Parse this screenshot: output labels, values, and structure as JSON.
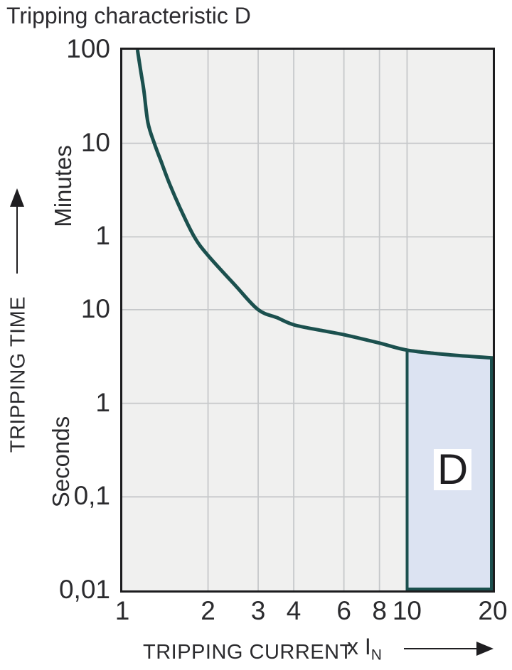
{
  "title": "Tripping characteristic D",
  "y_axis": {
    "title": "TRIPPING TIME",
    "unit_minutes": "Minutes",
    "unit_seconds": "Seconds"
  },
  "x_axis": {
    "title": "TRIPPING CURRENT",
    "multiplier_prefix": "x I",
    "multiplier_sub": "N"
  },
  "colors": {
    "curve": "#1b504e",
    "region_fill": "#dce3f2",
    "region_border": "#1b504e",
    "plot_bg": "#f0f0ef",
    "gridline": "#c6c8ca",
    "plot_border": "#1c1c1e",
    "text": "#2b2b2e"
  },
  "chart_data": {
    "type": "line",
    "title": "Tripping characteristic D",
    "xlabel": "TRIPPING CURRENT (x IN)",
    "ylabel": "TRIPPING TIME",
    "x_scale": "log",
    "y_scale": "log",
    "x_range": [
      1,
      20
    ],
    "y_range_seconds": [
      0.01,
      6000
    ],
    "grid": true,
    "legend": "none",
    "x_ticks": [
      {
        "label": "1",
        "value": 1
      },
      {
        "label": "2",
        "value": 2
      },
      {
        "label": "3",
        "value": 3
      },
      {
        "label": "4",
        "value": 4
      },
      {
        "label": "6",
        "value": 6
      },
      {
        "label": "8",
        "value": 8
      },
      {
        "label": "10",
        "value": 10
      },
      {
        "label": "20",
        "value": 20
      }
    ],
    "y_ticks": [
      {
        "label": "100",
        "seconds": 6000,
        "unit": "minutes"
      },
      {
        "label": "10",
        "seconds": 600,
        "unit": "minutes"
      },
      {
        "label": "1",
        "seconds": 60,
        "unit": "minutes"
      },
      {
        "label": "10",
        "seconds": 10,
        "unit": "seconds"
      },
      {
        "label": "1",
        "seconds": 1,
        "unit": "seconds"
      },
      {
        "label": "0,1",
        "seconds": 0.1,
        "unit": "seconds"
      },
      {
        "label": "0,01",
        "seconds": 0.01,
        "unit": "seconds"
      }
    ],
    "x_gridlines": [
      2,
      3,
      4,
      6,
      8,
      10
    ],
    "y_gridlines": [
      600,
      60,
      10,
      1,
      0.1
    ],
    "series": [
      {
        "name": "D tripping curve",
        "points_x_in_y_seconds": [
          [
            1.13,
            6000
          ],
          [
            1.16,
            3600
          ],
          [
            1.19,
            2200
          ],
          [
            1.23,
            1000
          ],
          [
            1.295,
            600
          ],
          [
            1.37,
            380
          ],
          [
            1.47,
            216
          ],
          [
            1.6,
            120
          ],
          [
            1.79,
            60
          ],
          [
            2.0,
            38
          ],
          [
            2.5,
            18
          ],
          [
            3.0,
            10
          ],
          [
            3.5,
            8.2
          ],
          [
            4.0,
            6.9
          ],
          [
            5.0,
            6.0
          ],
          [
            6.0,
            5.4
          ],
          [
            8.0,
            4.4
          ],
          [
            10.0,
            3.7
          ],
          [
            14.0,
            3.3
          ],
          [
            20.0,
            3.05
          ]
        ]
      }
    ],
    "region": {
      "label": "D",
      "x_from": 10,
      "x_to": 20,
      "y_bottom_seconds": 0.01,
      "top_edge_points": [
        [
          10,
          3.7
        ],
        [
          14,
          3.3
        ],
        [
          20,
          3.05
        ]
      ]
    }
  }
}
